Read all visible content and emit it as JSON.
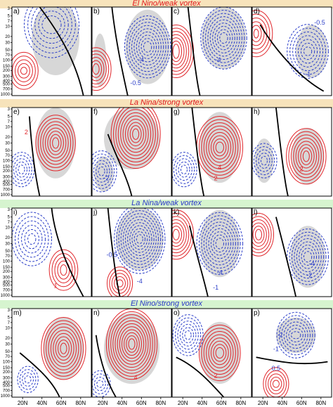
{
  "figure": {
    "rows": [
      {
        "title": "El Nino/weak vortex",
        "title_color": "#e0171c",
        "band_color": "#f7e3bb",
        "panels": [
          "a)",
          "b)",
          "c)",
          "d)"
        ]
      },
      {
        "title": "La Nina/strong vortex",
        "title_color": "#e0171c",
        "band_color": "#f7e3bb",
        "panels": [
          "e)",
          "f)",
          "g)",
          "h)"
        ]
      },
      {
        "title": "La Nina/weak vortex",
        "title_color": "#2a38c8",
        "band_color": "#d6f4cf",
        "panels": [
          "i)",
          "j)",
          "k)",
          "l)"
        ]
      },
      {
        "title": "El Nino/strong vortex",
        "title_color": "#2a38c8",
        "band_color": "#d6f4cf",
        "panels": [
          "m)",
          "n)",
          "o)",
          "p)"
        ]
      }
    ],
    "y_ticks": [
      "3",
      "5",
      "7",
      "10",
      "20",
      "30",
      "50",
      "70",
      "100",
      "150",
      "200",
      "300",
      "400",
      "500",
      "700",
      "1000"
    ],
    "x_ticks": [
      "20N",
      "40N",
      "60N",
      "80N"
    ],
    "panel_labels": {
      "a)": [],
      "b)": [
        {
          "t": "-4",
          "c": "blue"
        },
        {
          "t": "-0.5",
          "c": "blue"
        }
      ],
      "c)": [
        {
          "t": "-4",
          "c": "blue"
        }
      ],
      "d)": [
        {
          "t": "-0.5",
          "c": "blue"
        },
        {
          "t": "-1",
          "c": "blue"
        }
      ],
      "e)": [
        {
          "t": "2",
          "c": "red"
        }
      ],
      "f)": [
        {
          "t": "-2",
          "c": "blue"
        }
      ],
      "g)": [
        {
          "t": "4",
          "c": "red"
        },
        {
          "t": "2",
          "c": "red"
        }
      ],
      "h)": [
        {
          "t": "2",
          "c": "red"
        }
      ],
      "i)": [
        {
          "t": "1",
          "c": "red"
        }
      ],
      "j)": [
        {
          "t": "-0.5",
          "c": "blue"
        },
        {
          "t": "-4",
          "c": "blue"
        }
      ],
      "k)": [
        {
          "t": "-4",
          "c": "blue"
        },
        {
          "t": "-1",
          "c": "blue"
        }
      ],
      "l)": [
        {
          "t": "-4",
          "c": "blue"
        },
        {
          "t": "-2",
          "c": "blue"
        }
      ],
      "m)": [],
      "n)": [
        {
          "t": "4",
          "c": "red"
        }
      ],
      "o)": [
        {
          "t": "2",
          "c": "red"
        }
      ],
      "p)": [
        {
          "t": "-2",
          "c": "blue"
        },
        {
          "t": "-1",
          "c": "blue"
        },
        {
          "t": "0.5",
          "c": "blue"
        }
      ]
    },
    "colors": {
      "positive": "#e0272c",
      "negative": "#2b3ec8",
      "zero": "#000000",
      "shade": "#d7d7d7"
    }
  },
  "chart_data": {
    "type": "heatmap",
    "title": "",
    "row_titles": [
      "El Nino/weak vortex",
      "La Nina/strong vortex",
      "La Nina/weak vortex",
      "El Nino/strong vortex"
    ],
    "panels": [
      "a)",
      "b)",
      "c)",
      "d)",
      "e)",
      "f)",
      "g)",
      "h)",
      "i)",
      "j)",
      "k)",
      "l)",
      "m)",
      "n)",
      "o)",
      "p)"
    ],
    "x": [
      "20N",
      "40N",
      "60N",
      "80N"
    ],
    "y": [
      3,
      5,
      7,
      10,
      20,
      30,
      50,
      70,
      100,
      150,
      200,
      300,
      400,
      500,
      700,
      1000
    ],
    "y_scale": "log",
    "y_reversed": true,
    "contour_labels": [
      -4,
      -2,
      -1,
      -0.5,
      0.5,
      1,
      2,
      4
    ],
    "positive_color": "red solid",
    "negative_color": "blue dashed",
    "zero_contour": "black thick",
    "shading": "gray"
  }
}
